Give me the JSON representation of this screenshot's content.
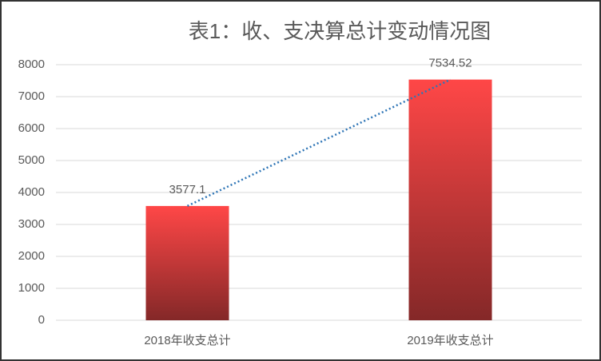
{
  "chart_data": {
    "type": "bar",
    "title": "表1：收、支决算总计变动情况图",
    "categories": [
      "2018年收支总计",
      "2019年收支总计"
    ],
    "values": [
      3577.1,
      7534.52
    ],
    "color_top": "#ff4747",
    "color_bottom": "#842828",
    "trendline": true,
    "trendline_color": "#2e75b6",
    "ylim": [
      0,
      8000
    ],
    "yticks": [
      0,
      1000,
      2000,
      3000,
      4000,
      5000,
      6000,
      7000,
      8000
    ],
    "grid": true
  }
}
